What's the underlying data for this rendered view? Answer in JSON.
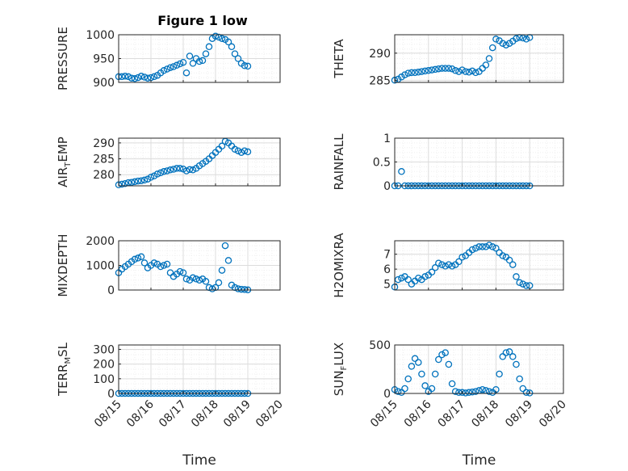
{
  "figure_title": "Figure 1 low",
  "xlabel": "Time",
  "x_tick_labels": [
    "08/15",
    "08/16",
    "08/17",
    "08/18",
    "08/19",
    "08/20"
  ],
  "marker_color": "#0072BD",
  "chart_data": [
    {
      "type": "scatter",
      "name": "PRESSURE",
      "title": "Figure 1 low",
      "ylabel_main": "PRESSURE",
      "ylabel_sub": "",
      "ylabel_tail": "",
      "xlabel": "",
      "xlim": [
        0,
        5
      ],
      "ylim": [
        900,
        1000
      ],
      "yticks": [
        900,
        950,
        1000
      ],
      "grid": true,
      "x": [
        0,
        0.1,
        0.2,
        0.3,
        0.4,
        0.5,
        0.6,
        0.7,
        0.8,
        0.9,
        1.0,
        1.1,
        1.2,
        1.3,
        1.4,
        1.5,
        1.6,
        1.7,
        1.8,
        1.9,
        2.0,
        2.1,
        2.2,
        2.3,
        2.4,
        2.5,
        2.6,
        2.7,
        2.8,
        2.9,
        3.0,
        3.1,
        3.2,
        3.3,
        3.4,
        3.5,
        3.6,
        3.7,
        3.8,
        3.9,
        4.0
      ],
      "y": [
        912,
        912,
        913,
        912,
        909,
        908,
        910,
        913,
        911,
        909,
        910,
        912,
        915,
        920,
        925,
        928,
        931,
        933,
        936,
        939,
        942,
        920,
        955,
        940,
        950,
        944,
        946,
        960,
        975,
        992,
        997,
        995,
        992,
        990,
        985,
        975,
        960,
        950,
        940,
        935,
        934
      ],
      "y2": [
        0,
        0,
        0,
        0,
        0,
        0,
        0,
        0,
        0,
        0,
        0,
        0,
        0,
        0,
        0,
        0,
        0,
        0,
        0,
        0,
        0,
        0,
        0,
        0,
        0,
        0,
        0,
        0,
        0,
        0,
        0,
        0,
        0,
        0,
        0,
        0,
        0,
        0,
        0,
        0,
        0
      ]
    },
    {
      "type": "scatter",
      "name": "THETA",
      "title": "",
      "ylabel_main": "THETA",
      "ylabel_sub": "",
      "ylabel_tail": "",
      "xlabel": "",
      "xlim": [
        0,
        5
      ],
      "ylim": [
        284.6,
        293.4
      ],
      "yticks": [
        285,
        290
      ],
      "grid": true,
      "x": [
        0,
        0.1,
        0.2,
        0.3,
        0.4,
        0.5,
        0.6,
        0.7,
        0.8,
        0.9,
        1.0,
        1.1,
        1.2,
        1.3,
        1.4,
        1.5,
        1.6,
        1.7,
        1.8,
        1.9,
        2.0,
        2.1,
        2.2,
        2.3,
        2.4,
        2.5,
        2.6,
        2.7,
        2.8,
        2.9,
        3.0,
        3.1,
        3.2,
        3.3,
        3.4,
        3.5,
        3.6,
        3.7,
        3.8,
        3.9,
        4.0
      ],
      "y": [
        285,
        285.2,
        285.6,
        286,
        286.3,
        286.4,
        286.4,
        286.5,
        286.6,
        286.7,
        286.8,
        286.9,
        287,
        287.1,
        287.2,
        287.2,
        287.2,
        287.1,
        286.8,
        286.6,
        286.9,
        286.6,
        286.5,
        286.7,
        286.4,
        286.6,
        287.2,
        287.8,
        289,
        291,
        292.6,
        292.3,
        291.8,
        291.5,
        291.8,
        292.2,
        292.7,
        292.9,
        292.8,
        292.6,
        292.9
      ],
      "y2": [
        0,
        0,
        0,
        0,
        0,
        0,
        0,
        0,
        0,
        0,
        0,
        0,
        0,
        0,
        0,
        0,
        0,
        0,
        0,
        0,
        0,
        0,
        0,
        0,
        0,
        0,
        0,
        0,
        0,
        0,
        0,
        0,
        0,
        0,
        0,
        0,
        0,
        0,
        0,
        0,
        0
      ]
    },
    {
      "type": "scatter",
      "name": "AIR_TEMP",
      "title": "",
      "ylabel_main": "AIR",
      "ylabel_sub": "T",
      "ylabel_tail": "EMP",
      "xlabel": "",
      "xlim": [
        0,
        5
      ],
      "ylim": [
        276.5,
        291.5
      ],
      "yticks": [
        280,
        285,
        290
      ],
      "grid": true,
      "x": [
        0,
        0.1,
        0.2,
        0.3,
        0.4,
        0.5,
        0.6,
        0.7,
        0.8,
        0.9,
        1.0,
        1.1,
        1.2,
        1.3,
        1.4,
        1.5,
        1.6,
        1.7,
        1.8,
        1.9,
        2.0,
        2.1,
        2.2,
        2.3,
        2.4,
        2.5,
        2.6,
        2.7,
        2.8,
        2.9,
        3.0,
        3.1,
        3.2,
        3.3,
        3.4,
        3.5,
        3.6,
        3.7,
        3.8,
        3.9,
        4.0
      ],
      "y": [
        276.8,
        277,
        277.2,
        277.5,
        277.6,
        277.8,
        278,
        278.1,
        278.3,
        278.6,
        279.2,
        279.6,
        280.2,
        280.6,
        281,
        281.2,
        281.5,
        281.7,
        282,
        282,
        281.8,
        281.2,
        281.6,
        281.5,
        282,
        282.8,
        283.5,
        284.2,
        285,
        286,
        287,
        288,
        289,
        290.5,
        290,
        289,
        288,
        287.5,
        287,
        287.5,
        287.2
      ],
      "y2": [
        0,
        0,
        0,
        0,
        0,
        0,
        0,
        0,
        0,
        0,
        0,
        0,
        0,
        0,
        0,
        0,
        0,
        0,
        0,
        0,
        0,
        0,
        0,
        0,
        0,
        0,
        0,
        0,
        0,
        0,
        0,
        0,
        0,
        0,
        0,
        0,
        0,
        0,
        0,
        0,
        0
      ]
    },
    {
      "type": "scatter",
      "name": "RAINFALL",
      "title": "",
      "ylabel_main": "RAINFALL",
      "ylabel_sub": "",
      "ylabel_tail": "",
      "xlabel": "",
      "xlim": [
        0,
        5
      ],
      "ylim": [
        0,
        1
      ],
      "yticks": [
        0,
        0.5,
        1
      ],
      "grid": true,
      "x": [
        0,
        0.1,
        0.2,
        0.3,
        0.4,
        0.5,
        0.6,
        0.7,
        0.8,
        0.9,
        1.0,
        1.1,
        1.2,
        1.3,
        1.4,
        1.5,
        1.6,
        1.7,
        1.8,
        1.9,
        2.0,
        2.1,
        2.2,
        2.3,
        2.4,
        2.5,
        2.6,
        2.7,
        2.8,
        2.9,
        3.0,
        3.1,
        3.2,
        3.3,
        3.4,
        3.5,
        3.6,
        3.7,
        3.8,
        3.9,
        4.0
      ],
      "y": [
        0,
        0,
        0.3,
        0,
        0,
        0,
        0,
        0,
        0,
        0,
        0,
        0,
        0,
        0,
        0,
        0,
        0,
        0,
        0,
        0,
        0,
        0,
        0,
        0,
        0,
        0,
        0,
        0,
        0,
        0,
        0,
        0,
        0,
        0,
        0,
        0,
        0,
        0,
        0,
        0,
        0
      ],
      "y2": [
        0,
        0,
        0,
        0,
        0,
        0,
        0,
        0,
        0,
        0,
        0,
        0,
        0,
        0,
        0,
        0,
        0,
        0,
        0,
        0,
        0,
        0,
        0,
        0,
        0,
        0,
        0,
        0,
        0,
        0,
        0,
        0,
        0,
        0,
        0,
        0,
        0,
        0,
        0,
        0,
        0
      ]
    },
    {
      "type": "scatter",
      "name": "MIXDEPTH",
      "title": "",
      "ylabel_main": "MIXDEPTH",
      "ylabel_sub": "",
      "ylabel_tail": "",
      "xlabel": "",
      "xlim": [
        0,
        5
      ],
      "ylim": [
        0,
        2000
      ],
      "yticks": [
        0,
        1000,
        2000
      ],
      "grid": true,
      "x": [
        0,
        0.1,
        0.2,
        0.3,
        0.4,
        0.5,
        0.6,
        0.7,
        0.8,
        0.9,
        1.0,
        1.1,
        1.2,
        1.3,
        1.4,
        1.5,
        1.6,
        1.7,
        1.8,
        1.9,
        2.0,
        2.1,
        2.2,
        2.3,
        2.4,
        2.5,
        2.6,
        2.7,
        2.8,
        2.9,
        3.0,
        3.1,
        3.2,
        3.3,
        3.4,
        3.5,
        3.6,
        3.7,
        3.8,
        3.9,
        4.0
      ],
      "y": [
        700,
        850,
        950,
        1050,
        1150,
        1250,
        1300,
        1350,
        1100,
        900,
        1000,
        1100,
        1050,
        950,
        1000,
        1050,
        700,
        550,
        650,
        750,
        700,
        450,
        400,
        500,
        450,
        400,
        450,
        350,
        100,
        50,
        100,
        300,
        800,
        1800,
        1200,
        200,
        100,
        50,
        30,
        20,
        10
      ],
      "y2": [
        0,
        0,
        0,
        0,
        0,
        0,
        0,
        0,
        0,
        0,
        0,
        0,
        0,
        0,
        0,
        0,
        0,
        0,
        0,
        0,
        0,
        0,
        0,
        0,
        0,
        0,
        0,
        0,
        0,
        0,
        0,
        0,
        0,
        0,
        0,
        0,
        0,
        0,
        0,
        0,
        0
      ]
    },
    {
      "type": "scatter",
      "name": "H2OMIXRA",
      "title": "",
      "ylabel_main": "H2OMIXRA",
      "ylabel_sub": "",
      "ylabel_tail": "",
      "xlabel": "",
      "xlim": [
        0,
        5
      ],
      "ylim": [
        4.6,
        7.9
      ],
      "yticks": [
        5,
        6,
        7
      ],
      "grid": true,
      "x": [
        0,
        0.1,
        0.2,
        0.3,
        0.4,
        0.5,
        0.6,
        0.7,
        0.8,
        0.9,
        1.0,
        1.1,
        1.2,
        1.3,
        1.4,
        1.5,
        1.6,
        1.7,
        1.8,
        1.9,
        2.0,
        2.1,
        2.2,
        2.3,
        2.4,
        2.5,
        2.6,
        2.7,
        2.8,
        2.9,
        3.0,
        3.1,
        3.2,
        3.3,
        3.4,
        3.5,
        3.6,
        3.7,
        3.8,
        3.9,
        4.0
      ],
      "y": [
        4.8,
        5.3,
        5.4,
        5.5,
        5.3,
        5.0,
        5.2,
        5.4,
        5.3,
        5.5,
        5.6,
        5.8,
        6.1,
        6.4,
        6.3,
        6.2,
        6.3,
        6.2,
        6.3,
        6.5,
        6.8,
        6.9,
        7.1,
        7.3,
        7.4,
        7.5,
        7.5,
        7.5,
        7.6,
        7.5,
        7.4,
        7.1,
        6.9,
        6.8,
        6.6,
        6.3,
        5.5,
        5.1,
        5.0,
        4.9,
        4.9
      ],
      "y2": [
        0,
        0,
        0,
        0,
        0,
        0,
        0,
        0,
        0,
        0,
        0,
        0,
        0,
        0,
        0,
        0,
        0,
        0,
        0,
        0,
        0,
        0,
        0,
        0,
        0,
        0,
        0,
        0,
        0,
        0,
        0,
        0,
        0,
        0,
        0,
        0,
        0,
        0,
        0,
        0,
        0
      ]
    },
    {
      "type": "scatter",
      "name": "TERR_MSL",
      "title": "",
      "ylabel_main": "TERR",
      "ylabel_sub": "M",
      "ylabel_tail": "SL",
      "xlabel": "Time",
      "xlim": [
        0,
        5
      ],
      "ylim": [
        0,
        330
      ],
      "yticks": [
        0,
        100,
        200,
        300
      ],
      "grid": true,
      "x": [
        0,
        0.1,
        0.2,
        0.3,
        0.4,
        0.5,
        0.6,
        0.7,
        0.8,
        0.9,
        1.0,
        1.1,
        1.2,
        1.3,
        1.4,
        1.5,
        1.6,
        1.7,
        1.8,
        1.9,
        2.0,
        2.1,
        2.2,
        2.3,
        2.4,
        2.5,
        2.6,
        2.7,
        2.8,
        2.9,
        3.0,
        3.1,
        3.2,
        3.3,
        3.4,
        3.5,
        3.6,
        3.7,
        3.8,
        3.9,
        4.0
      ],
      "y": [
        0,
        0,
        0,
        0,
        0,
        0,
        0,
        0,
        0,
        0,
        0,
        0,
        0,
        0,
        0,
        0,
        0,
        0,
        0,
        0,
        0,
        0,
        0,
        0,
        0,
        0,
        0,
        0,
        0,
        0,
        0,
        0,
        0,
        0,
        0,
        0,
        0,
        0,
        0,
        0,
        0
      ],
      "y2": [
        0,
        0,
        0,
        0,
        0,
        0,
        0,
        0,
        0,
        0,
        0,
        0,
        0,
        0,
        0,
        0,
        0,
        0,
        0,
        0,
        0,
        0,
        0,
        0,
        0,
        0,
        0,
        0,
        0,
        0,
        0,
        0,
        0,
        0,
        0,
        0,
        0,
        0,
        0,
        0,
        0
      ]
    },
    {
      "type": "scatter",
      "name": "SUN_FLUX",
      "title": "",
      "ylabel_main": "SUN",
      "ylabel_sub": "F",
      "ylabel_tail": "LUX",
      "xlabel": "Time",
      "xlim": [
        0,
        5
      ],
      "ylim": [
        0,
        500
      ],
      "yticks": [
        0,
        500
      ],
      "grid": true,
      "x": [
        0,
        0.1,
        0.2,
        0.3,
        0.4,
        0.5,
        0.6,
        0.7,
        0.8,
        0.9,
        1.0,
        1.1,
        1.2,
        1.3,
        1.4,
        1.5,
        1.6,
        1.7,
        1.8,
        1.9,
        2.0,
        2.1,
        2.2,
        2.3,
        2.4,
        2.5,
        2.6,
        2.7,
        2.8,
        2.9,
        3.0,
        3.1,
        3.2,
        3.3,
        3.4,
        3.5,
        3.6,
        3.7,
        3.8,
        3.9,
        4.0
      ],
      "y": [
        40,
        20,
        10,
        50,
        150,
        280,
        360,
        320,
        200,
        80,
        20,
        50,
        200,
        350,
        400,
        420,
        300,
        100,
        20,
        10,
        10,
        5,
        10,
        15,
        20,
        30,
        40,
        30,
        20,
        10,
        40,
        200,
        380,
        420,
        430,
        380,
        300,
        150,
        50,
        10,
        5
      ],
      "y2": [
        0,
        0,
        0,
        0,
        0,
        0,
        0,
        0,
        0,
        0,
        0,
        0,
        0,
        0,
        0,
        0,
        0,
        0,
        0,
        0,
        0,
        0,
        0,
        0,
        0,
        0,
        0,
        0,
        0,
        0,
        0,
        0,
        0,
        0,
        0,
        0,
        0,
        0,
        0,
        0,
        0
      ]
    }
  ]
}
